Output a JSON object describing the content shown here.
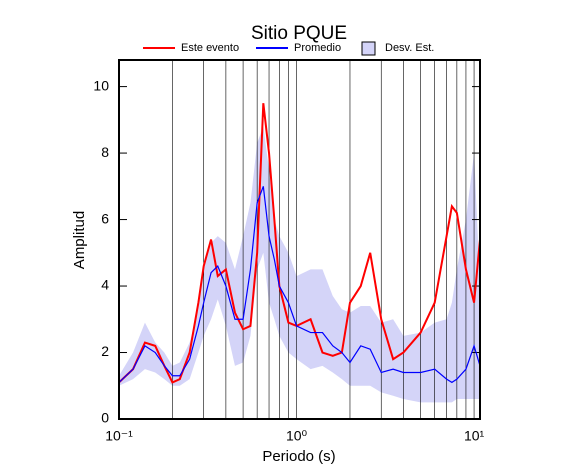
{
  "chart_data": {
    "type": "line",
    "title": "Sitio PQUE",
    "xlabel": "Periodo (s)",
    "ylabel": "Amplitud",
    "xscale": "log",
    "xlim": [
      0.1,
      10.8
    ],
    "ylim": [
      0,
      10.8
    ],
    "xticks": [
      {
        "value": 0.1,
        "label": "10⁻¹"
      },
      {
        "value": 1,
        "label": "10⁰"
      },
      {
        "value": 10,
        "label": "10¹"
      }
    ],
    "xgrid": [
      0.2,
      0.3,
      0.4,
      0.5,
      0.6,
      0.7,
      0.8,
      0.9,
      2,
      3,
      4,
      5,
      6,
      7,
      8,
      9
    ],
    "yticks": [
      0,
      2,
      4,
      6,
      8,
      10
    ],
    "x": [
      0.1,
      0.12,
      0.14,
      0.16,
      0.18,
      0.2,
      0.22,
      0.25,
      0.28,
      0.3,
      0.33,
      0.36,
      0.4,
      0.45,
      0.5,
      0.55,
      0.6,
      0.65,
      0.7,
      0.75,
      0.8,
      0.9,
      1.0,
      1.2,
      1.4,
      1.6,
      1.8,
      2.0,
      2.3,
      2.6,
      3.0,
      3.5,
      4,
      5,
      6,
      7,
      7.5,
      8,
      9,
      10,
      10.8
    ],
    "series": [
      {
        "name": "Este evento",
        "color": "#ff0000",
        "values": [
          1.1,
          1.5,
          2.3,
          2.2,
          1.6,
          1.1,
          1.2,
          2.0,
          3.5,
          4.6,
          5.4,
          4.3,
          4.5,
          3.2,
          2.7,
          2.8,
          5.0,
          9.5,
          8.0,
          6.0,
          4.0,
          2.9,
          2.8,
          3.0,
          2.0,
          1.9,
          2.0,
          3.5,
          4.0,
          5.0,
          3.0,
          1.8,
          2.0,
          2.6,
          3.5,
          5.5,
          6.4,
          6.2,
          4.5,
          3.5,
          5.4
        ]
      },
      {
        "name": "Promedio",
        "color": "#0000ff",
        "values": [
          1.1,
          1.5,
          2.2,
          2.0,
          1.6,
          1.3,
          1.3,
          1.8,
          2.8,
          3.5,
          4.4,
          4.6,
          4.0,
          3.0,
          3.0,
          4.5,
          6.5,
          7.0,
          5.5,
          4.8,
          4.0,
          3.5,
          2.8,
          2.6,
          2.6,
          2.2,
          2.0,
          1.7,
          2.2,
          2.1,
          1.4,
          1.5,
          1.4,
          1.4,
          1.5,
          1.2,
          1.1,
          1.2,
          1.5,
          2.2,
          1.6
        ]
      },
      {
        "name": "Desv. Est.",
        "color": "#d4d4f8",
        "upper": [
          1.3,
          2.0,
          2.9,
          2.3,
          2.0,
          1.6,
          1.7,
          2.3,
          3.3,
          4.5,
          5.3,
          5.5,
          5.3,
          4.5,
          5.5,
          6.5,
          8.3,
          8.8,
          7.5,
          6.0,
          5.5,
          5.0,
          4.3,
          4.5,
          4.5,
          3.7,
          3.3,
          3.2,
          3.4,
          3.4,
          2.9,
          3.0,
          2.5,
          2.6,
          2.9,
          3.0,
          3.5,
          4.5,
          6.0,
          8.0,
          4.0
        ],
        "lower": [
          1.0,
          1.2,
          1.5,
          1.4,
          1.2,
          1.0,
          1.0,
          1.2,
          2.0,
          2.5,
          3.0,
          3.6,
          2.8,
          1.6,
          1.7,
          2.5,
          4.5,
          5.0,
          3.5,
          3.0,
          2.5,
          2.0,
          1.8,
          1.5,
          1.6,
          1.4,
          1.2,
          1.0,
          1.0,
          1.0,
          0.8,
          0.7,
          0.6,
          0.5,
          0.5,
          0.5,
          0.5,
          0.6,
          0.6,
          0.6,
          0.6
        ]
      }
    ]
  }
}
